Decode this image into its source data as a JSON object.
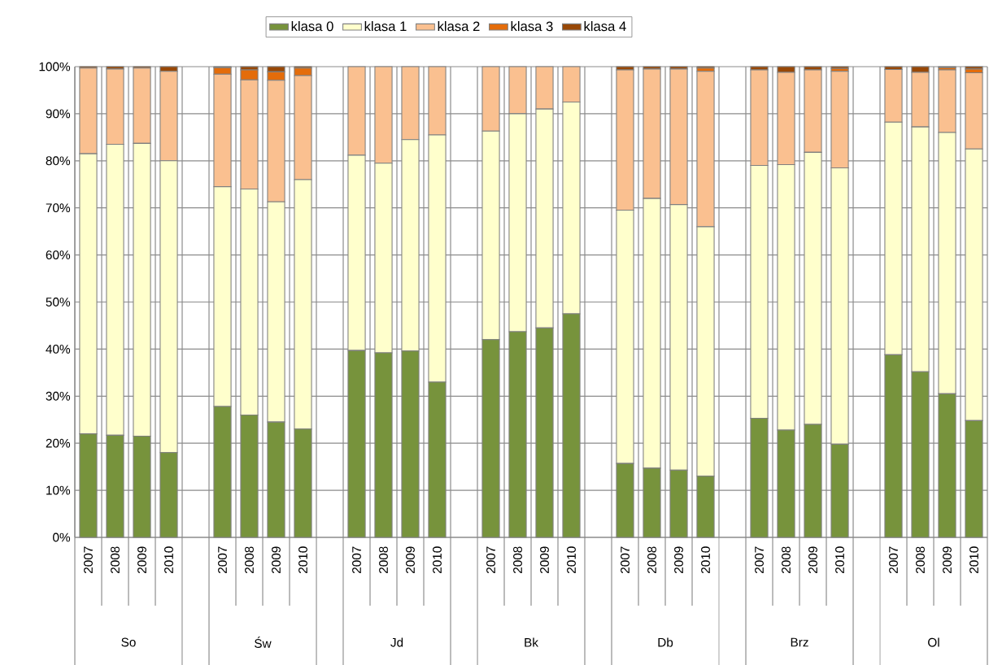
{
  "chart_data": {
    "type": "bar",
    "stacked": true,
    "grid": true,
    "legend": "top",
    "categories": [
      "2007",
      "2008",
      "2009",
      "2010",
      null,
      "2007",
      "2008",
      "2009",
      "2010",
      null,
      "2007",
      "2008",
      "2009",
      "2010",
      null,
      "2007",
      "2008",
      "2009",
      "2010",
      null,
      "2007",
      "2008",
      "2009",
      "2010",
      null,
      "2007",
      "2008",
      "2009",
      "2010",
      null,
      "2007",
      "2008",
      "2009",
      "2010"
    ],
    "annotations": [
      "So",
      "Św",
      "Jd",
      "Bk",
      "Db",
      "Brz",
      "Ol"
    ],
    "ylim": [
      0,
      100
    ],
    "yticks": [
      {
        "value": 0,
        "label": "0%"
      },
      {
        "value": 10,
        "label": "10%"
      },
      {
        "value": 20,
        "label": "20%"
      },
      {
        "value": 30,
        "label": "30%"
      },
      {
        "value": 40,
        "label": "40%"
      },
      {
        "value": 50,
        "label": "50%"
      },
      {
        "value": 60,
        "label": "60%"
      },
      {
        "value": 70,
        "label": "70%"
      },
      {
        "value": 80,
        "label": "80%"
      },
      {
        "value": 90,
        "label": "90%"
      },
      {
        "value": 100,
        "label": "100%"
      }
    ],
    "series": [
      {
        "name": "klasa 0",
        "color": "#77933c",
        "values": [
          22,
          21.7,
          21.5,
          18,
          null,
          27.8,
          26,
          24.5,
          23,
          null,
          39.7,
          39.2,
          39.6,
          33,
          null,
          42,
          43.7,
          44.5,
          47.5,
          null,
          15.7,
          14.7,
          14.3,
          13,
          null,
          25.3,
          22.8,
          24,
          19.8,
          null,
          38.8,
          35.2,
          30.5,
          24.8
        ]
      },
      {
        "name": "klasa 1",
        "color": "#ffffcc",
        "values": [
          59.5,
          61.8,
          62.2,
          62,
          null,
          46.7,
          48,
          46.8,
          53,
          null,
          41.5,
          40.3,
          44.9,
          52.5,
          null,
          44.3,
          46.3,
          46.5,
          45,
          null,
          53.8,
          57.3,
          56.4,
          53,
          null,
          53.7,
          56.4,
          57.8,
          58.7,
          null,
          49.4,
          52,
          55.5,
          57.7
        ]
      },
      {
        "name": "klasa 2",
        "color": "#fac090",
        "values": [
          18.2,
          16,
          16,
          19,
          null,
          23.9,
          23.2,
          25.8,
          22.1,
          null,
          18.8,
          20.5,
          15.5,
          14.5,
          null,
          13.7,
          10,
          9,
          7.5,
          null,
          29.8,
          27.5,
          28.8,
          33,
          null,
          20.3,
          19.6,
          17.5,
          20.5,
          null,
          11.2,
          11.6,
          13.3,
          16.2
        ]
      },
      {
        "name": "klasa 3",
        "color": "#e46c0a",
        "values": [
          0,
          0,
          0,
          0,
          null,
          1.4,
          2.1,
          1.8,
          1.6,
          null,
          0,
          0,
          0,
          0,
          null,
          0,
          0,
          0,
          0,
          null,
          0,
          0,
          0,
          0.7,
          null,
          0,
          0,
          0,
          0.6,
          null,
          0,
          0,
          0.5,
          0.8
        ]
      },
      {
        "name": "klasa 4",
        "color": "#984807",
        "values": [
          0.3,
          0.5,
          0.3,
          1,
          null,
          0.2,
          0.7,
          1.1,
          0.3,
          null,
          0,
          0,
          0,
          0,
          null,
          0,
          0,
          0,
          0,
          null,
          0.7,
          0.5,
          0.5,
          0.3,
          null,
          0.7,
          1.2,
          0.7,
          0.4,
          null,
          0.6,
          1.2,
          0.2,
          0.5
        ]
      }
    ]
  }
}
